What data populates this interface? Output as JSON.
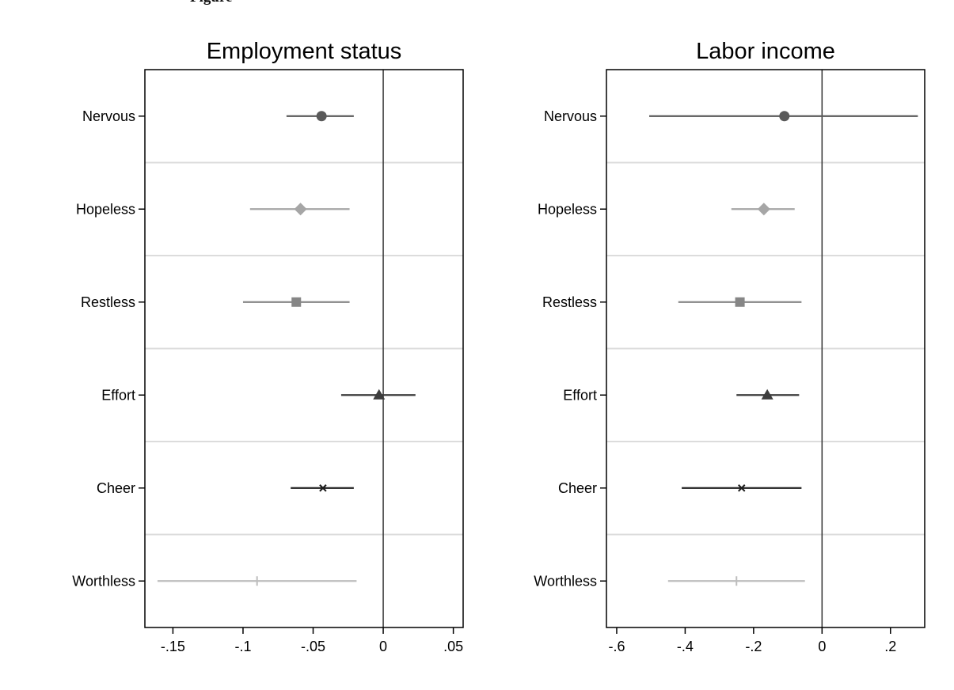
{
  "figure": {
    "cut_title": "Figure"
  },
  "chart_data": [
    {
      "type": "scatter",
      "title": "Employment status",
      "categories": [
        "Nervous",
        "Hopeless",
        "Restless",
        "Effort",
        "Cheer",
        "Worthless"
      ],
      "xlim": [
        -0.17,
        0.057
      ],
      "x_ticks": [
        -0.15,
        -0.1,
        -0.05,
        0,
        0.05
      ],
      "x_tick_labels": [
        "-.15",
        "-.1",
        "-.05",
        "0",
        ".05"
      ],
      "reference_line": 0,
      "series": [
        {
          "category": "Nervous",
          "estimate": -0.044,
          "ci": [
            -0.069,
            -0.021
          ],
          "marker": "circle",
          "color": "#5a5a5a"
        },
        {
          "category": "Hopeless",
          "estimate": -0.059,
          "ci": [
            -0.095,
            -0.024
          ],
          "marker": "diamond",
          "color": "#a6a6a6"
        },
        {
          "category": "Restless",
          "estimate": -0.062,
          "ci": [
            -0.1,
            -0.024
          ],
          "marker": "square",
          "color": "#868686"
        },
        {
          "category": "Effort",
          "estimate": -0.003,
          "ci": [
            -0.03,
            0.023
          ],
          "marker": "triangle",
          "color": "#3d3d3d"
        },
        {
          "category": "Cheer",
          "estimate": -0.043,
          "ci": [
            -0.066,
            -0.021
          ],
          "marker": "x",
          "color": "#1e1e1e"
        },
        {
          "category": "Worthless",
          "estimate": -0.09,
          "ci": [
            -0.161,
            -0.019
          ],
          "marker": "plus",
          "color": "#bdbdbd"
        }
      ],
      "grid": true
    },
    {
      "type": "scatter",
      "title": "Labor income",
      "categories": [
        "Nervous",
        "Hopeless",
        "Restless",
        "Effort",
        "Cheer",
        "Worthless"
      ],
      "xlim": [
        -0.63,
        0.3
      ],
      "x_ticks": [
        -0.6,
        -0.4,
        -0.2,
        0,
        0.2
      ],
      "x_tick_labels": [
        "-.6",
        "-.4",
        "-.2",
        "0",
        ".2"
      ],
      "reference_line": 0,
      "series": [
        {
          "category": "Nervous",
          "estimate": -0.11,
          "ci": [
            -0.505,
            0.28
          ],
          "marker": "circle",
          "color": "#5a5a5a"
        },
        {
          "category": "Hopeless",
          "estimate": -0.17,
          "ci": [
            -0.265,
            -0.08
          ],
          "marker": "diamond",
          "color": "#a6a6a6"
        },
        {
          "category": "Restless",
          "estimate": -0.24,
          "ci": [
            -0.42,
            -0.06
          ],
          "marker": "square",
          "color": "#868686"
        },
        {
          "category": "Effort",
          "estimate": -0.16,
          "ci": [
            -0.25,
            -0.067
          ],
          "marker": "triangle",
          "color": "#3d3d3d"
        },
        {
          "category": "Cheer",
          "estimate": -0.235,
          "ci": [
            -0.41,
            -0.06
          ],
          "marker": "x",
          "color": "#1e1e1e"
        },
        {
          "category": "Worthless",
          "estimate": -0.25,
          "ci": [
            -0.45,
            -0.05
          ],
          "marker": "plus",
          "color": "#bdbdbd"
        }
      ],
      "grid": true
    }
  ]
}
